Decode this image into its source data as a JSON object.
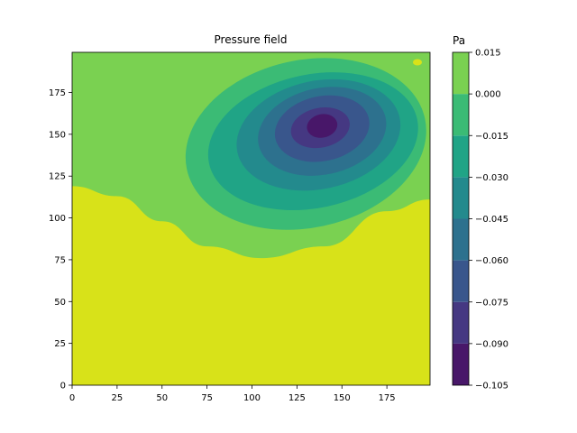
{
  "chart_data": {
    "type": "heatmap",
    "subtype": "filled-contour",
    "title": "Pressure field",
    "xlabel": "",
    "ylabel": "",
    "xlim": [
      0,
      199
    ],
    "ylim": [
      0,
      199
    ],
    "x_ticks": [
      0,
      25,
      50,
      75,
      100,
      125,
      150,
      175
    ],
    "y_ticks": [
      0,
      25,
      50,
      75,
      100,
      125,
      150,
      175
    ],
    "grid": false,
    "colorbar": {
      "label": "Pa",
      "ticks": [
        "0.015",
        "0.000",
        "−0.015",
        "−0.030",
        "−0.045",
        "−0.060",
        "−0.075",
        "−0.090",
        "−0.105"
      ],
      "levels": [
        -0.105,
        -0.09,
        -0.075,
        -0.06,
        -0.045,
        -0.03,
        -0.015,
        0.0,
        0.015
      ],
      "colors": [
        "#481769",
        "#453882",
        "#39568c",
        "#2d718e",
        "#238a8d",
        "#20a486",
        "#3bbb75",
        "#7ad151",
        "#d8e219"
      ]
    },
    "field": {
      "description_min": {
        "x": 139,
        "y": 155,
        "value": -0.1
      },
      "zero_contour_y_at_x": [
        [
          0,
          119
        ],
        [
          25,
          113
        ],
        [
          50,
          98
        ],
        [
          75,
          83
        ],
        [
          105,
          76
        ],
        [
          140,
          83
        ],
        [
          175,
          104
        ],
        [
          199,
          111
        ]
      ],
      "small_positive_spot": {
        "x": 193,
        "y": 193
      }
    }
  }
}
